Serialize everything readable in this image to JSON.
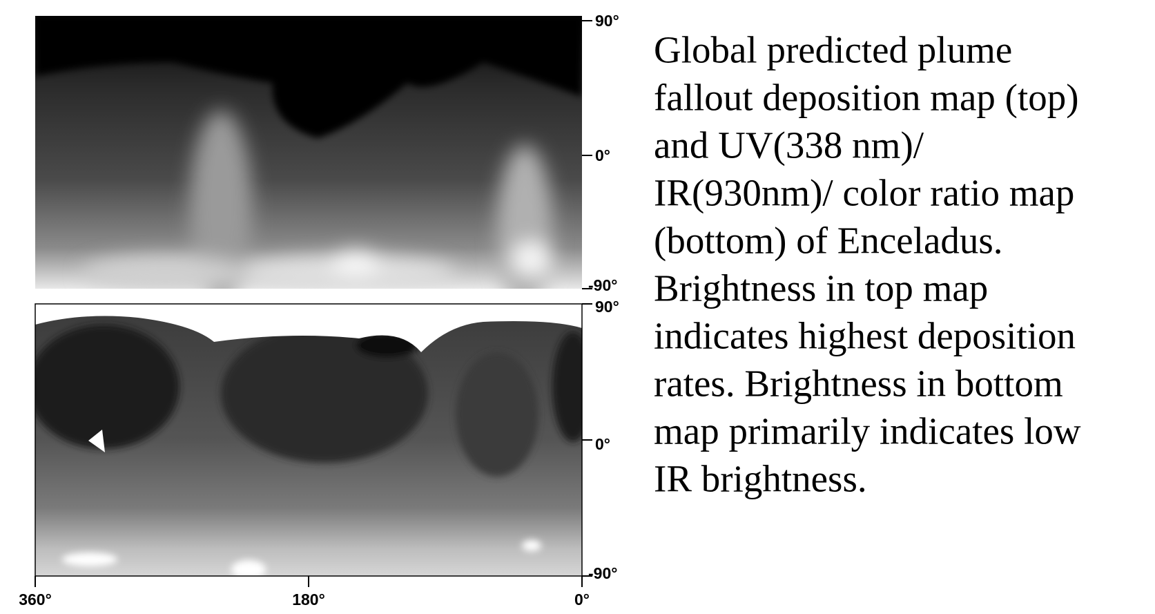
{
  "top_map": {
    "lat_ticks": [
      "90°",
      "0°",
      "-90°"
    ]
  },
  "bottom_map": {
    "lat_ticks": [
      "90°",
      "0°",
      "-90°"
    ]
  },
  "lon_ticks": [
    "360°",
    "180°",
    "0°"
  ],
  "caption": [
    "Global predicted plume",
    "fallout deposition map (top)",
    "and UV(338 nm)/",
    "IR(930nm)/ color ratio map",
    "(bottom) of Enceladus.",
    "Brightness in top map",
    "indicates highest deposition",
    "rates. Brightness in bottom",
    "map primarily indicates low",
    "IR brightness."
  ]
}
